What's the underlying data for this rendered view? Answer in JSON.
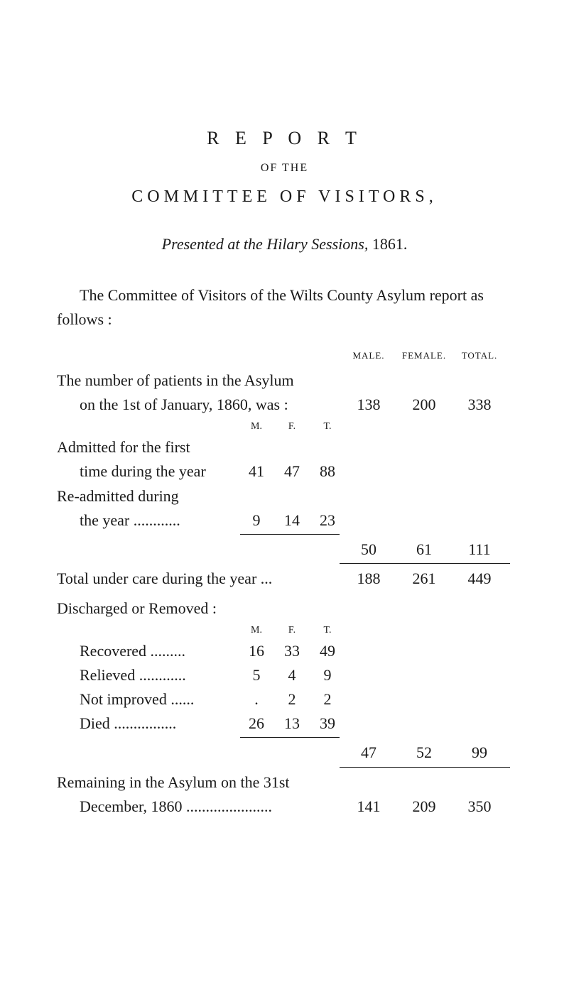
{
  "header": {
    "reportTitle": "R E P O R T",
    "ofThe": "OF THE",
    "committeeTitle": "COMMITTEE OF VISITORS,",
    "presentedPrefix": "Presented at the Hilary Sessions, ",
    "presentedYear": "1861."
  },
  "intro": "The Committee of Visitors of the Wilts County Asylum report as follows :",
  "colHeaders": {
    "male": "MALE.",
    "female": "FEMALE.",
    "total": "TOTAL."
  },
  "mft": {
    "m": "M.",
    "f": "F.",
    "t": "T."
  },
  "numberPatients": {
    "line1": "The number of patients in the Asylum",
    "line2": "on the 1st of January, 1860, was :",
    "male": "138",
    "female": "200",
    "total": "338"
  },
  "admitted": {
    "line1": "Admitted for the first",
    "line2": "time during the year",
    "m": "41",
    "f": "47",
    "t": "88"
  },
  "readmitted": {
    "line1": "Re-admitted during",
    "line2": "the year ............",
    "m": "9",
    "f": "14",
    "t": "23"
  },
  "subtotal1": {
    "male": "50",
    "female": "61",
    "total": "111"
  },
  "totalUnderCare": {
    "label": "Total under care during the year ...",
    "male": "188",
    "female": "261",
    "total": "449"
  },
  "dischargedHeader": "Discharged or Removed :",
  "recovered": {
    "label": "Recovered .........",
    "m": "16",
    "f": "33",
    "t": "49"
  },
  "relieved": {
    "label": "Relieved ............",
    "m": "5",
    "f": "4",
    "t": "9"
  },
  "notImproved": {
    "label": "Not improved ......",
    "m": ".",
    "f": "2",
    "t": "2"
  },
  "died": {
    "label": "Died ................",
    "m": "26",
    "f": "13",
    "t": "39"
  },
  "subtotal2": {
    "male": "47",
    "female": "52",
    "total": "99"
  },
  "remaining": {
    "line1": "Remaining in the Asylum on the 31st",
    "line2": "December, 1860 ......................",
    "male": "141",
    "female": "209",
    "total": "350"
  }
}
